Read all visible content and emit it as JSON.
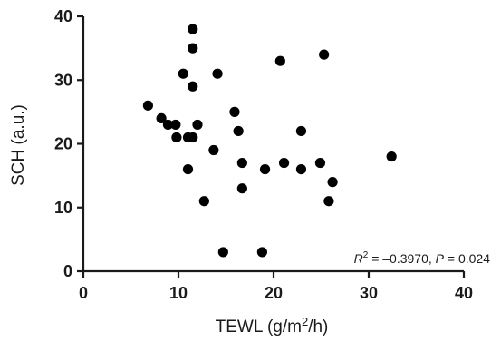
{
  "chart_data": {
    "type": "scatter",
    "title": "",
    "xlabel": "TEWL (g/m²/h)",
    "xlabel_parts": {
      "main": "TEWL (g/m",
      "sup": "2",
      "tail": "/h)"
    },
    "ylabel": "SCH (a.u.)",
    "xlim": [
      0,
      40
    ],
    "ylim": [
      0,
      40
    ],
    "xticks": [
      "0",
      "10",
      "20",
      "30",
      "40"
    ],
    "yticks": [
      "0",
      "10",
      "20",
      "30",
      "40"
    ],
    "grid": false,
    "legend": "none",
    "marker_color": "#000000",
    "annotation": {
      "r_label": "R",
      "r_sup": "2",
      "r_value": " = –0.3970, ",
      "p_label": "P",
      "p_value": " = 0.024"
    },
    "points": [
      {
        "x": 6.8,
        "y": 26
      },
      {
        "x": 8.2,
        "y": 24
      },
      {
        "x": 8.9,
        "y": 23
      },
      {
        "x": 9.7,
        "y": 23
      },
      {
        "x": 9.8,
        "y": 21
      },
      {
        "x": 10.5,
        "y": 31
      },
      {
        "x": 11.0,
        "y": 21
      },
      {
        "x": 11.0,
        "y": 16
      },
      {
        "x": 11.5,
        "y": 38
      },
      {
        "x": 11.5,
        "y": 35
      },
      {
        "x": 11.5,
        "y": 29
      },
      {
        "x": 11.5,
        "y": 21
      },
      {
        "x": 12.0,
        "y": 23
      },
      {
        "x": 12.7,
        "y": 11
      },
      {
        "x": 13.7,
        "y": 19
      },
      {
        "x": 14.1,
        "y": 31
      },
      {
        "x": 14.7,
        "y": 3
      },
      {
        "x": 15.9,
        "y": 25
      },
      {
        "x": 16.3,
        "y": 22
      },
      {
        "x": 16.7,
        "y": 17
      },
      {
        "x": 16.7,
        "y": 13
      },
      {
        "x": 18.8,
        "y": 3
      },
      {
        "x": 19.1,
        "y": 16
      },
      {
        "x": 20.7,
        "y": 33
      },
      {
        "x": 21.1,
        "y": 17
      },
      {
        "x": 22.9,
        "y": 22
      },
      {
        "x": 22.9,
        "y": 16
      },
      {
        "x": 24.9,
        "y": 17
      },
      {
        "x": 25.3,
        "y": 34
      },
      {
        "x": 25.8,
        "y": 11
      },
      {
        "x": 26.2,
        "y": 14
      },
      {
        "x": 32.4,
        "y": 18
      }
    ]
  }
}
